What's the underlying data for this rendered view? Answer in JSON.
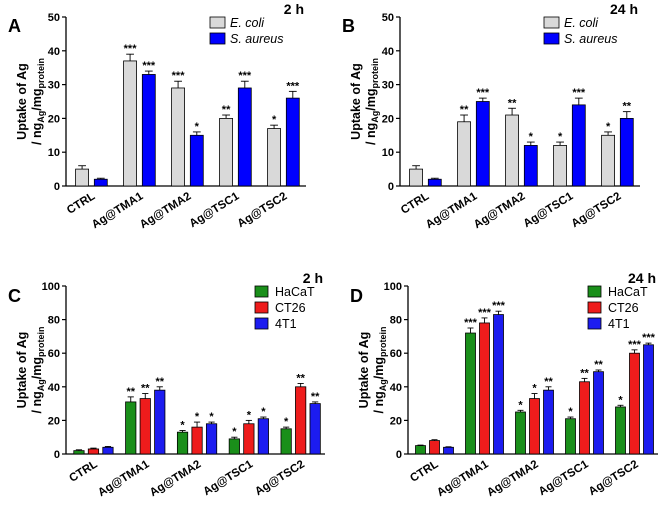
{
  "chart_data": [
    {
      "type": "bar",
      "panel_label": "A",
      "title": "2 h",
      "ylabel_line1": "Uptake of Ag",
      "ylabel_line2": "/ ng",
      "ylabel_sub1": "Ag",
      "ylabel_mid": "/mg",
      "ylabel_sub2": "protein",
      "ylim": [
        0,
        50
      ],
      "yticks": [
        0,
        10,
        20,
        30,
        40,
        50
      ],
      "categories": [
        "CTRL",
        "Ag@TMA1",
        "Ag@TMA2",
        "Ag@TSC1",
        "Ag@TSC2"
      ],
      "legend_position": "top-right",
      "series": [
        {
          "name": "E. coli",
          "italic": true,
          "color": "#d9d9d9",
          "values": [
            5,
            37,
            29,
            20,
            17
          ],
          "errors": [
            1,
            2,
            2,
            1,
            1
          ],
          "stars": [
            "",
            "***",
            "***",
            "**",
            "*"
          ]
        },
        {
          "name": "S. aureus",
          "italic": true,
          "color": "#0000ff",
          "values": [
            2,
            33,
            15,
            29,
            26
          ],
          "errors": [
            0.3,
            1,
            1,
            2,
            2
          ],
          "stars": [
            "",
            "***",
            "*",
            "***",
            "***"
          ]
        }
      ]
    },
    {
      "type": "bar",
      "panel_label": "B",
      "title": "24 h",
      "ylabel_line1": "Uptake of Ag",
      "ylabel_line2": "/ ng",
      "ylabel_sub1": "Ag",
      "ylabel_mid": "/mg",
      "ylabel_sub2": "protein",
      "ylim": [
        0,
        50
      ],
      "yticks": [
        0,
        10,
        20,
        30,
        40,
        50
      ],
      "categories": [
        "CTRL",
        "Ag@TMA1",
        "Ag@TMA2",
        "Ag@TSC1",
        "Ag@TSC2"
      ],
      "legend_position": "top-right",
      "series": [
        {
          "name": "E. coli",
          "italic": true,
          "color": "#d9d9d9",
          "values": [
            5,
            19,
            21,
            12,
            15
          ],
          "errors": [
            1,
            2,
            2,
            1,
            1
          ],
          "stars": [
            "",
            "**",
            "**",
            "*",
            "*"
          ]
        },
        {
          "name": "S. aureus",
          "italic": true,
          "color": "#0000ff",
          "values": [
            2,
            25,
            12,
            24,
            20
          ],
          "errors": [
            0.3,
            1,
            1,
            2,
            2
          ],
          "stars": [
            "",
            "***",
            "*",
            "***",
            "**"
          ]
        }
      ]
    },
    {
      "type": "bar",
      "panel_label": "C",
      "title": "2 h",
      "ylabel_line1": "Uptake of Ag",
      "ylabel_line2": "/ ng",
      "ylabel_sub1": "Ag",
      "ylabel_mid": "/mg",
      "ylabel_sub2": "protein",
      "ylim": [
        0,
        100
      ],
      "yticks": [
        0,
        20,
        40,
        60,
        80,
        100
      ],
      "categories": [
        "CTRL",
        "Ag@TMA1",
        "Ag@TMA2",
        "Ag@TSC1",
        "Ag@TSC2"
      ],
      "legend_position": "top-right",
      "series": [
        {
          "name": "HaCaT",
          "italic": false,
          "color": "#1a8f1a",
          "values": [
            2,
            31,
            13,
            9,
            15
          ],
          "errors": [
            0.5,
            3,
            1,
            1,
            1
          ],
          "stars": [
            "",
            "**",
            "*",
            "*",
            "*"
          ]
        },
        {
          "name": "CT26",
          "italic": false,
          "color": "#ee1c1c",
          "values": [
            3,
            33,
            16,
            18,
            40
          ],
          "errors": [
            0.5,
            3,
            3,
            2,
            2
          ],
          "stars": [
            "",
            "**",
            "*",
            "*",
            "**"
          ]
        },
        {
          "name": "4T1",
          "italic": false,
          "color": "#1c1cf0",
          "values": [
            4,
            38,
            18,
            21,
            30
          ],
          "errors": [
            0.5,
            2,
            1,
            1,
            1
          ],
          "stars": [
            "",
            "**",
            "*",
            "*",
            "**"
          ]
        }
      ]
    },
    {
      "type": "bar",
      "panel_label": "D",
      "title": "24 h",
      "ylabel_line1": "Uptake of Ag",
      "ylabel_line2": "/ ng",
      "ylabel_sub1": "Ag",
      "ylabel_mid": "/mg",
      "ylabel_sub2": "protein",
      "ylim": [
        0,
        100
      ],
      "yticks": [
        0,
        20,
        40,
        60,
        80,
        100
      ],
      "categories": [
        "CTRL",
        "Ag@TMA1",
        "Ag@TMA2",
        "Ag@TSC1",
        "Ag@TSC2"
      ],
      "legend_position": "top-right",
      "series": [
        {
          "name": "HaCaT",
          "italic": false,
          "color": "#1a8f1a",
          "values": [
            5,
            72,
            25,
            21,
            28
          ],
          "errors": [
            0.3,
            3,
            1,
            1,
            1
          ],
          "stars": [
            "",
            "***",
            "*",
            "*",
            "*"
          ]
        },
        {
          "name": "CT26",
          "italic": false,
          "color": "#ee1c1c",
          "values": [
            8,
            78,
            33,
            43,
            60
          ],
          "errors": [
            0.5,
            3,
            3,
            2,
            2
          ],
          "stars": [
            "",
            "***",
            "*",
            "**",
            "***"
          ]
        },
        {
          "name": "4T1",
          "italic": false,
          "color": "#1c1cf0",
          "values": [
            4,
            83,
            38,
            49,
            65
          ],
          "errors": [
            0.3,
            2,
            2,
            1,
            1
          ],
          "stars": [
            "",
            "***",
            "**",
            "**",
            "***"
          ]
        }
      ]
    }
  ]
}
